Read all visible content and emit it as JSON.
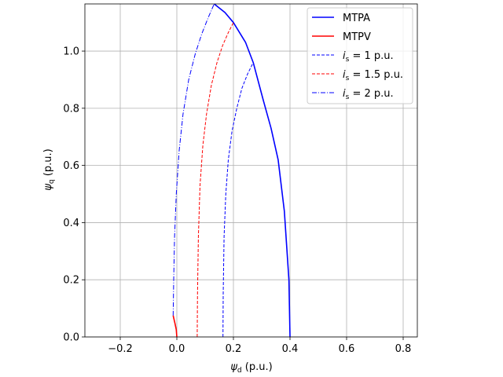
{
  "chart_data": {
    "type": "line",
    "xlabel": {
      "symbol": "ψ",
      "sub": "d",
      "unit": " (p.u.)"
    },
    "ylabel": {
      "symbol": "ψ",
      "sub": "q",
      "unit": " (p.u.)"
    },
    "xlim": [
      -0.325,
      0.85
    ],
    "ylim": [
      0.0,
      1.165
    ],
    "xticks": [
      -0.2,
      0.0,
      0.2,
      0.4,
      0.6,
      0.8
    ],
    "xtick_labels": [
      "−0.2",
      "0.0",
      "0.2",
      "0.4",
      "0.6",
      "0.8"
    ],
    "yticks": [
      0.0,
      0.2,
      0.4,
      0.6,
      0.8,
      1.0
    ],
    "ytick_labels": [
      "0.0",
      "0.2",
      "0.4",
      "0.6",
      "0.8",
      "1.0"
    ],
    "grid": true,
    "legend_position": "top-right",
    "series": [
      {
        "name": "MTPA",
        "color": "#0000ff",
        "style": "solid",
        "points": [
          [
            0.4,
            0.0
          ],
          [
            0.396,
            0.2
          ],
          [
            0.38,
            0.44
          ],
          [
            0.358,
            0.62
          ],
          [
            0.333,
            0.73
          ],
          [
            0.305,
            0.83
          ],
          [
            0.27,
            0.96
          ],
          [
            0.243,
            1.03
          ],
          [
            0.2,
            1.1
          ],
          [
            0.17,
            1.135
          ],
          [
            0.132,
            1.165
          ]
        ]
      },
      {
        "name": "MTPV",
        "color": "#ff0000",
        "style": "solid",
        "points": [
          [
            0.0,
            0.0
          ],
          [
            -0.002,
            0.025
          ],
          [
            -0.006,
            0.045
          ],
          [
            -0.013,
            0.075
          ]
        ]
      },
      {
        "name": "1 p.u.",
        "legend_prefix": "i",
        "legend_sub": "s",
        "legend_eq": " = ",
        "color": "#0000ff",
        "style": "dashed",
        "points": [
          [
            0.163,
            0.0
          ],
          [
            0.164,
            0.15
          ],
          [
            0.167,
            0.35
          ],
          [
            0.173,
            0.5
          ],
          [
            0.182,
            0.62
          ],
          [
            0.195,
            0.72
          ],
          [
            0.212,
            0.8
          ],
          [
            0.23,
            0.87
          ],
          [
            0.25,
            0.92
          ],
          [
            0.27,
            0.96
          ]
        ]
      },
      {
        "name": "1.5 p.u.",
        "legend_prefix": "i",
        "legend_sub": "s",
        "legend_eq": " = ",
        "color": "#ff0000",
        "style": "dashed",
        "points": [
          [
            0.072,
            0.0
          ],
          [
            0.073,
            0.15
          ],
          [
            0.076,
            0.35
          ],
          [
            0.082,
            0.53
          ],
          [
            0.092,
            0.67
          ],
          [
            0.105,
            0.78
          ],
          [
            0.122,
            0.88
          ],
          [
            0.142,
            0.96
          ],
          [
            0.162,
            1.02
          ],
          [
            0.182,
            1.065
          ],
          [
            0.2,
            1.1
          ]
        ]
      },
      {
        "name": "2 p.u.",
        "legend_prefix": "i",
        "legend_sub": "s",
        "legend_eq": " = ",
        "color": "#0000ff",
        "style": "dashdot",
        "points": [
          [
            -0.013,
            0.075
          ],
          [
            -0.011,
            0.2
          ],
          [
            -0.008,
            0.35
          ],
          [
            -0.002,
            0.5
          ],
          [
            0.008,
            0.65
          ],
          [
            0.022,
            0.78
          ],
          [
            0.042,
            0.9
          ],
          [
            0.065,
            0.99
          ],
          [
            0.088,
            1.06
          ],
          [
            0.11,
            1.115
          ],
          [
            0.132,
            1.165
          ]
        ]
      }
    ]
  }
}
